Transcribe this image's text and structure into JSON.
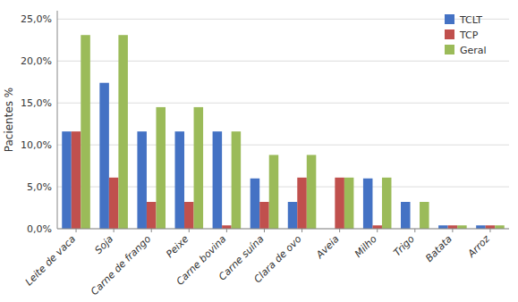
{
  "chart_data": {
    "type": "bar",
    "categories": [
      "Leite de vaca",
      "Soja",
      "Carne de frango",
      "Peixe",
      "Carne bovina",
      "Carne suína",
      "Clara de ovo",
      "Aveia",
      "Milho",
      "Trigo",
      "Batata",
      "Arroz"
    ],
    "series": [
      {
        "name": "TCLT",
        "color": "#4472C4",
        "values": [
          11.6,
          17.4,
          11.6,
          11.6,
          11.6,
          6.0,
          3.2,
          0.0,
          6.0,
          3.2,
          0.4,
          0.4
        ]
      },
      {
        "name": "TCP",
        "color": "#C0504D",
        "values": [
          11.6,
          6.1,
          3.2,
          3.2,
          0.4,
          3.2,
          6.1,
          6.1,
          0.4,
          0.0,
          0.4,
          0.4
        ]
      },
      {
        "name": "Geral",
        "color": "#9BBB59",
        "values": [
          23.1,
          23.1,
          14.5,
          14.5,
          11.6,
          8.8,
          8.8,
          6.1,
          6.1,
          3.2,
          0.4,
          0.4
        ]
      }
    ],
    "y_label": "Pacientes %",
    "ylim": [
      0,
      26
    ],
    "yticks": [
      {
        "value": 0.0,
        "label": "0,0%"
      },
      {
        "value": 5.0,
        "label": "5,0%"
      },
      {
        "value": 10.0,
        "label": "10,0%"
      },
      {
        "value": 15.0,
        "label": "15,0%"
      },
      {
        "value": 20.0,
        "label": "20,0%"
      },
      {
        "value": 25.0,
        "label": "25,0%"
      }
    ],
    "grid": true,
    "legend": "upper right"
  }
}
